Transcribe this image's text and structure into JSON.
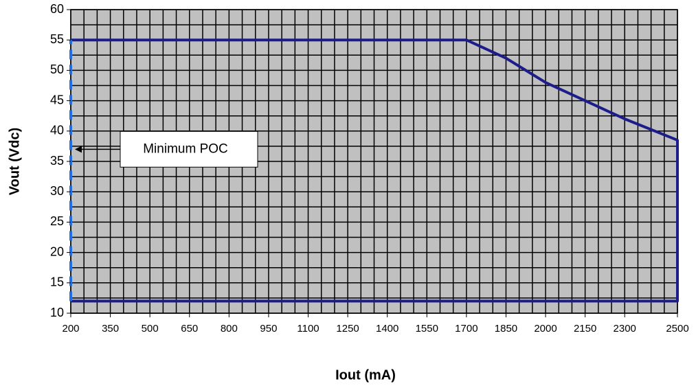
{
  "chart_data": {
    "type": "line",
    "x_label": "Iout (mA)",
    "y_label": "Vout (Vdc)",
    "xlim": [
      200,
      2500
    ],
    "ylim": [
      10,
      60
    ],
    "xticks": [
      200,
      350,
      500,
      650,
      800,
      950,
      1100,
      1250,
      1400,
      1550,
      1700,
      1850,
      2000,
      2150,
      2300,
      2500
    ],
    "yticks": [
      10,
      15,
      20,
      25,
      30,
      35,
      40,
      45,
      50,
      55,
      60
    ],
    "grid": true,
    "x_gridlines": [
      200,
      250,
      300,
      350,
      400,
      450,
      500,
      550,
      600,
      650,
      700,
      750,
      800,
      850,
      900,
      950,
      1000,
      1050,
      1100,
      1150,
      1200,
      1250,
      1300,
      1350,
      1400,
      1450,
      1500,
      1550,
      1600,
      1650,
      1700,
      1750,
      1800,
      1850,
      1900,
      1950,
      2000,
      2050,
      2100,
      2150,
      2200,
      2250,
      2300,
      2350,
      2400,
      2450,
      2500
    ],
    "y_gridlines": [
      10,
      12.5,
      15,
      17.5,
      20,
      22.5,
      25,
      27.5,
      30,
      32.5,
      35,
      37.5,
      40,
      42.5,
      45,
      47.5,
      50,
      52.5,
      55,
      57.5,
      60
    ],
    "series": [
      {
        "color": "#1c1c8a",
        "dashed": false,
        "x": [
          200,
          1700,
          1850,
          2000,
          2150,
          2300,
          2500,
          2500,
          200
        ],
        "values": [
          55,
          55,
          52,
          48,
          45,
          42,
          38.5,
          12,
          12
        ]
      },
      {
        "color": "#1f6fe6",
        "dashed": true,
        "x": [
          200,
          200
        ],
        "values": [
          12,
          55
        ]
      }
    ],
    "annotations": [
      {
        "text": "Minimum POC",
        "x": 200,
        "y": 37
      }
    ]
  }
}
